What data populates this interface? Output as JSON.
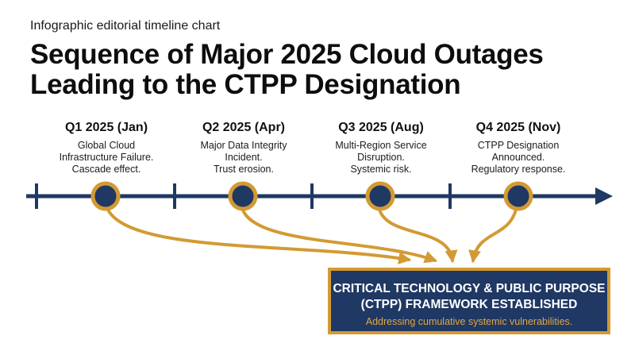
{
  "header": {
    "subtitle": "Infographic editorial timeline chart",
    "title_line1": "Sequence of Major 2025 Cloud Outages",
    "title_line2": "Leading to the CTPP Designation"
  },
  "events": [
    {
      "label": "Q1 2025 (Jan)",
      "desc": [
        "Global Cloud",
        "Infrastructure Failure.",
        "Cascade effect."
      ]
    },
    {
      "label": "Q2 2025 (Apr)",
      "desc": [
        "Major Data Integrity",
        "Incident.",
        "Trust erosion."
      ]
    },
    {
      "label": "Q3 2025 (Aug)",
      "desc": [
        "Multi-Region Service",
        "Disruption.",
        "Systemic risk."
      ]
    },
    {
      "label": "Q4 2025 (Nov)",
      "desc": [
        "CTPP Designation",
        "Announced.",
        "Regulatory response."
      ]
    }
  ],
  "framework": {
    "line1": "CRITICAL TECHNOLOGY & PUBLIC PURPOSE",
    "line2": "(CTPP) FRAMEWORK ESTABLISHED",
    "subtitle": "Addressing cumulative systemic vulnerabilities."
  },
  "colors": {
    "navy": "#1f3864",
    "gold": "#d39a33",
    "text": "#111111"
  }
}
